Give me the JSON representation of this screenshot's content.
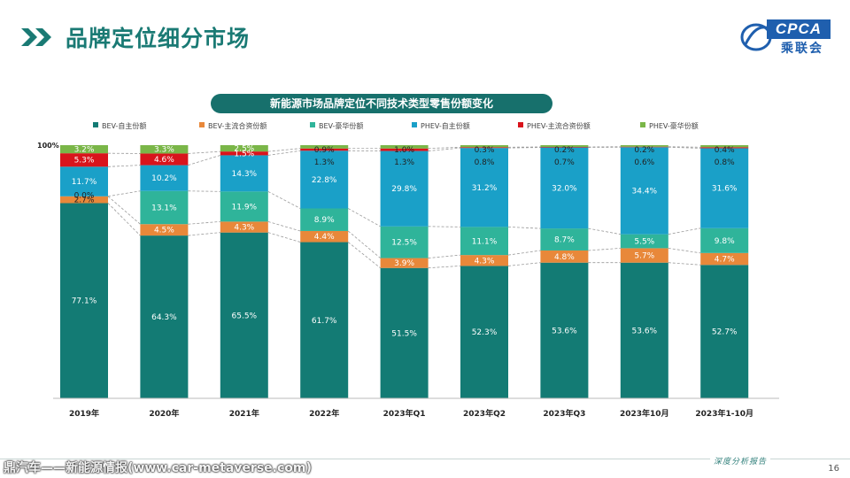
{
  "page": {
    "title": "品牌定位细分市场",
    "logo_en": "CPCA",
    "logo_cn": "乘联会",
    "footer_text": "深度分析报告",
    "page_number": "16",
    "watermark_bottom": "鼎汽车——新能源情报(www.car-metaverse.com)"
  },
  "colors": {
    "title": "#1a7a74",
    "chart_title_bg": "#17706c",
    "BEV-自主份额": "#137b74",
    "BEV-主流合资份额": "#e8883a",
    "BEV-豪华份额": "#2fb49a",
    "PHEV-自主份额": "#1aa0c8",
    "PHEV-主流合资份额": "#d9141c",
    "PHEV-豪华份额": "#7ab648"
  },
  "chart_data": {
    "type": "bar",
    "stacked": true,
    "title": "新能源市场品牌定位不同技术类型零售份额变化",
    "categories": [
      "2019年",
      "2020年",
      "2021年",
      "2022年",
      "2023年Q1",
      "2023年Q2",
      "2023年Q3",
      "2023年10月",
      "2023年1-10月"
    ],
    "y_top_label": "100%",
    "ylim": [
      0,
      100
    ],
    "legend_position": "top",
    "series": [
      {
        "name": "BEV-自主份额",
        "values": [
          77.1,
          64.3,
          65.5,
          61.7,
          51.5,
          52.3,
          53.6,
          53.6,
          52.7
        ],
        "labels": [
          "77.1%",
          "64.3%",
          "65.5%",
          "61.7%",
          "51.5%",
          "52.3%",
          "53.6%",
          "53.6%",
          "52.7%"
        ]
      },
      {
        "name": "BEV-主流合资份额",
        "values": [
          2.7,
          4.5,
          4.3,
          4.4,
          3.9,
          4.3,
          4.8,
          5.7,
          4.7
        ],
        "labels": [
          "2.7%",
          "4.5%",
          "4.3%",
          "4.4%",
          "3.9%",
          "4.3%",
          "4.8%",
          "5.7%",
          "4.7%"
        ]
      },
      {
        "name": "BEV-豪华份额",
        "values": [
          0.0,
          13.1,
          11.9,
          8.9,
          12.5,
          11.1,
          8.7,
          5.5,
          9.8
        ],
        "labels": [
          "0.0%",
          "13.1%",
          "11.9%",
          "8.9%",
          "12.5%",
          "11.1%",
          "8.7%",
          "5.5%",
          "9.8%"
        ]
      },
      {
        "name": "PHEV-自主份额",
        "values": [
          11.7,
          10.2,
          14.3,
          22.8,
          29.8,
          31.2,
          32.0,
          34.4,
          31.6
        ],
        "labels": [
          "11.7%",
          "10.2%",
          "14.3%",
          "22.8%",
          "29.8%",
          "31.2%",
          "32.0%",
          "34.4%",
          "31.6%"
        ]
      },
      {
        "name": "PHEV-主流合资份额",
        "values": [
          5.3,
          4.6,
          1.5,
          0.9,
          1.0,
          0.3,
          0.2,
          0.2,
          0.4
        ],
        "labels": [
          "5.3%",
          "4.6%",
          "1.5%",
          "0.9%",
          "1.0%",
          "0.3%",
          "0.2%",
          "0.2%",
          "0.4%"
        ]
      },
      {
        "name": "PHEV-豪华份额",
        "values": [
          3.2,
          3.3,
          2.5,
          1.3,
          1.3,
          0.8,
          0.7,
          0.6,
          0.8
        ],
        "labels": [
          "3.2%",
          "3.3%",
          "2.5%",
          "1.3%",
          "1.3%",
          "0.8%",
          "0.7%",
          "0.6%",
          "0.8%"
        ]
      }
    ]
  }
}
